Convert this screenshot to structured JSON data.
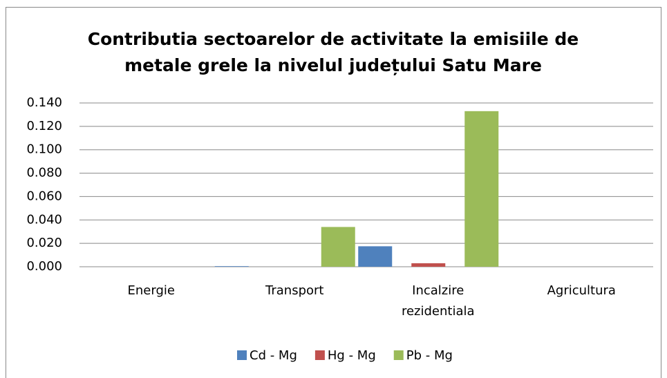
{
  "chart_data": {
    "type": "bar",
    "title": "Contributia sectoarelor de activitate la emisiile de metale grele la nivelul județului Satu Mare",
    "categories": [
      "Energie",
      "Transport",
      "Incalzire rezidentiala",
      "Agricultura"
    ],
    "series": [
      {
        "name": "Cd - Mg",
        "color": "#4f81bd",
        "values": [
          0,
          0.0005,
          0.0175,
          0
        ]
      },
      {
        "name": "Hg - Mg",
        "color": "#c0504d",
        "values": [
          0,
          0,
          0.003,
          0
        ]
      },
      {
        "name": "Pb - Mg",
        "color": "#9bbb59",
        "values": [
          0,
          0.034,
          0.133,
          0
        ]
      }
    ],
    "ylim": [
      0,
      0.14
    ],
    "yticks": [
      {
        "value": 0,
        "label": "0.000"
      },
      {
        "value": 0.02,
        "label": "0.020"
      },
      {
        "value": 0.04,
        "label": "0.040"
      },
      {
        "value": 0.06,
        "label": "0.060"
      },
      {
        "value": 0.08,
        "label": "0.080"
      },
      {
        "value": 0.1,
        "label": "0.100"
      },
      {
        "value": 0.12,
        "label": "0.120"
      },
      {
        "value": 0.14,
        "label": "0.140"
      }
    ],
    "grid": true,
    "legend": "bottom"
  }
}
